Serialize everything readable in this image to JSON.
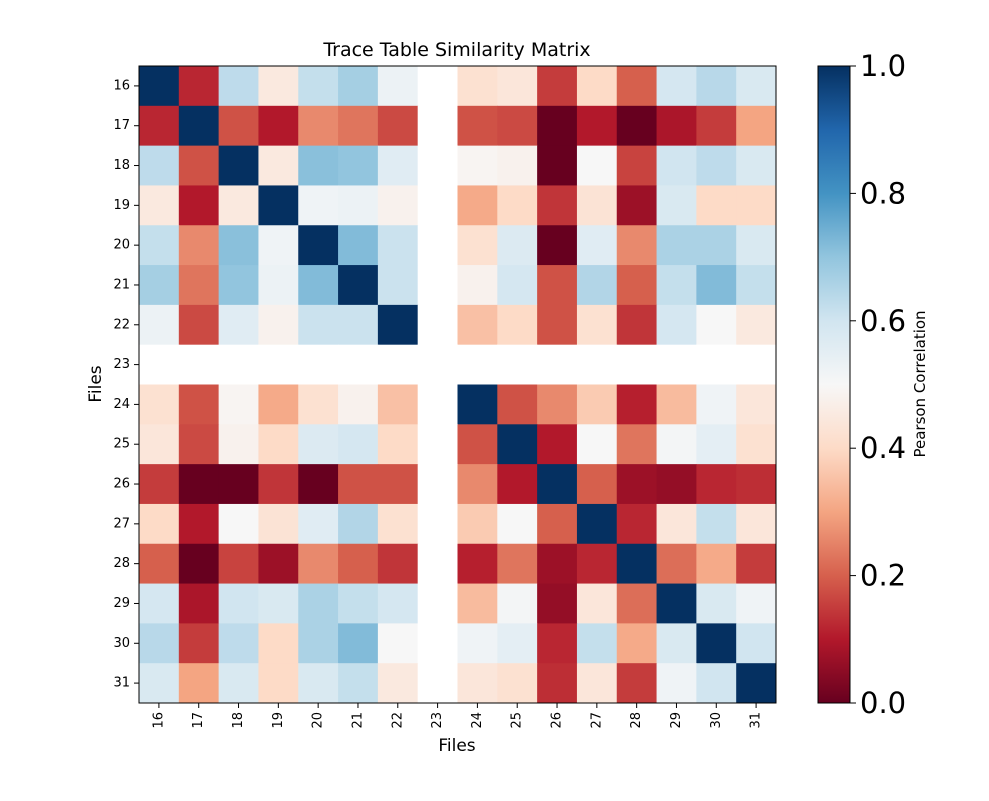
{
  "chart_data": {
    "type": "heatmap",
    "title": "Trace Table Similarity Matrix",
    "xlabel": "Files",
    "ylabel": "Files",
    "x_categories": [
      "16",
      "17",
      "18",
      "19",
      "20",
      "21",
      "22",
      "23",
      "24",
      "25",
      "26",
      "27",
      "28",
      "29",
      "30",
      "31"
    ],
    "y_categories": [
      "16",
      "17",
      "18",
      "19",
      "20",
      "21",
      "22",
      "23",
      "24",
      "25",
      "26",
      "27",
      "28",
      "29",
      "30",
      "31"
    ],
    "values": [
      [
        1.0,
        0.12,
        0.63,
        0.45,
        0.62,
        0.67,
        0.53,
        null,
        0.42,
        0.44,
        0.15,
        0.4,
        0.2,
        0.59,
        0.64,
        0.58
      ],
      [
        0.12,
        1.0,
        0.18,
        0.1,
        0.26,
        0.23,
        0.17,
        null,
        0.18,
        0.17,
        0.0,
        0.1,
        0.0,
        0.09,
        0.15,
        0.3
      ],
      [
        0.63,
        0.18,
        1.0,
        0.45,
        0.71,
        0.7,
        0.56,
        null,
        0.49,
        0.48,
        0.0,
        0.5,
        0.16,
        0.6,
        0.63,
        0.58
      ],
      [
        0.45,
        0.1,
        0.45,
        1.0,
        0.52,
        0.53,
        0.48,
        null,
        0.31,
        0.4,
        0.14,
        0.43,
        0.07,
        0.58,
        0.4,
        0.4
      ],
      [
        0.62,
        0.26,
        0.71,
        0.52,
        1.0,
        0.72,
        0.61,
        null,
        0.42,
        0.57,
        0.0,
        0.56,
        0.26,
        0.66,
        0.66,
        0.58
      ],
      [
        0.67,
        0.23,
        0.7,
        0.53,
        0.72,
        1.0,
        0.61,
        null,
        0.48,
        0.59,
        0.18,
        0.65,
        0.2,
        0.62,
        0.72,
        0.62
      ],
      [
        0.53,
        0.17,
        0.56,
        0.48,
        0.61,
        0.61,
        1.0,
        null,
        0.35,
        0.4,
        0.18,
        0.42,
        0.14,
        0.59,
        0.5,
        0.45
      ],
      [
        null,
        null,
        null,
        null,
        null,
        null,
        null,
        null,
        null,
        null,
        null,
        null,
        null,
        null,
        null,
        null
      ],
      [
        0.42,
        0.18,
        0.49,
        0.31,
        0.42,
        0.48,
        0.35,
        null,
        1.0,
        0.18,
        0.26,
        0.37,
        0.11,
        0.34,
        0.52,
        0.44
      ],
      [
        0.44,
        0.17,
        0.48,
        0.4,
        0.57,
        0.59,
        0.4,
        null,
        0.18,
        1.0,
        0.1,
        0.5,
        0.23,
        0.51,
        0.55,
        0.42
      ],
      [
        0.15,
        0.0,
        0.0,
        0.14,
        0.0,
        0.18,
        0.18,
        null,
        0.26,
        0.1,
        1.0,
        0.2,
        0.07,
        0.06,
        0.12,
        0.13
      ],
      [
        0.4,
        0.1,
        0.5,
        0.43,
        0.56,
        0.65,
        0.42,
        null,
        0.37,
        0.5,
        0.2,
        1.0,
        0.12,
        0.44,
        0.62,
        0.44
      ],
      [
        0.2,
        0.0,
        0.16,
        0.07,
        0.26,
        0.2,
        0.14,
        null,
        0.11,
        0.23,
        0.07,
        0.12,
        1.0,
        0.22,
        0.31,
        0.15
      ],
      [
        0.59,
        0.09,
        0.6,
        0.58,
        0.66,
        0.62,
        0.59,
        null,
        0.34,
        0.51,
        0.06,
        0.44,
        0.22,
        1.0,
        0.58,
        0.52
      ],
      [
        0.64,
        0.15,
        0.63,
        0.4,
        0.66,
        0.72,
        0.5,
        null,
        0.52,
        0.55,
        0.12,
        0.62,
        0.31,
        0.58,
        1.0,
        0.6
      ],
      [
        0.58,
        0.3,
        0.58,
        0.4,
        0.58,
        0.62,
        0.45,
        null,
        0.44,
        0.42,
        0.13,
        0.44,
        0.15,
        0.52,
        0.6,
        1.0
      ]
    ],
    "colormap": "RdBu",
    "colormap_stops": [
      "#67001f",
      "#b2182b",
      "#d6604d",
      "#f4a582",
      "#fddbc7",
      "#f7f7f7",
      "#d1e5f0",
      "#92c5de",
      "#4393c3",
      "#2166ac",
      "#053061"
    ],
    "missing_color": "#ffffff",
    "vmin": 0.0,
    "vmax": 1.0,
    "colorbar": {
      "label": "Pearson Correlation",
      "ticks": [
        0.0,
        0.2,
        0.4,
        0.6,
        0.8,
        1.0
      ],
      "tick_labels": [
        "0.0",
        "0.2",
        "0.4",
        "0.6",
        "0.8",
        "1.0"
      ]
    },
    "grid": false
  }
}
